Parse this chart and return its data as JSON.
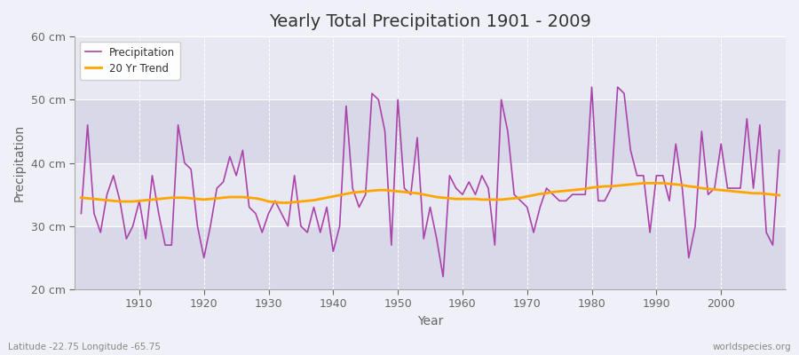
{
  "title": "Yearly Total Precipitation 1901 - 2009",
  "xlabel": "Year",
  "ylabel": "Precipitation",
  "subtitle": "Latitude -22.75 Longitude -65.75",
  "watermark": "worldspecies.org",
  "precip_color": "#AA44AA",
  "trend_color": "#FFA500",
  "bg_color": "#F0F0F8",
  "band_light": "#E8E8F2",
  "band_dark": "#D8D8E8",
  "grid_color": "#FFFFFF",
  "text_color": "#666666",
  "title_color": "#333333",
  "footer_color": "#888888",
  "ylim": [
    20,
    60
  ],
  "yticks": [
    20,
    30,
    40,
    50,
    60
  ],
  "ytick_labels": [
    "20 cm",
    "30 cm",
    "40 cm",
    "50 cm",
    "60 cm"
  ],
  "xlim": [
    1900,
    2010
  ],
  "xticks": [
    1910,
    1920,
    1930,
    1940,
    1950,
    1960,
    1970,
    1980,
    1990,
    2000
  ],
  "years": [
    1901,
    1902,
    1903,
    1904,
    1905,
    1906,
    1907,
    1908,
    1909,
    1910,
    1911,
    1912,
    1913,
    1914,
    1915,
    1916,
    1917,
    1918,
    1919,
    1920,
    1921,
    1922,
    1923,
    1924,
    1925,
    1926,
    1927,
    1928,
    1929,
    1930,
    1931,
    1932,
    1933,
    1934,
    1935,
    1936,
    1937,
    1938,
    1939,
    1940,
    1941,
    1942,
    1943,
    1944,
    1945,
    1946,
    1947,
    1948,
    1949,
    1950,
    1951,
    1952,
    1953,
    1954,
    1955,
    1956,
    1957,
    1958,
    1959,
    1960,
    1961,
    1962,
    1963,
    1964,
    1965,
    1966,
    1967,
    1968,
    1969,
    1970,
    1971,
    1972,
    1973,
    1974,
    1975,
    1976,
    1977,
    1978,
    1979,
    1980,
    1981,
    1982,
    1983,
    1984,
    1985,
    1986,
    1987,
    1988,
    1989,
    1990,
    1991,
    1992,
    1993,
    1994,
    1995,
    1996,
    1997,
    1998,
    1999,
    2000,
    2001,
    2002,
    2003,
    2004,
    2005,
    2006,
    2007,
    2008,
    2009
  ],
  "precipitation": [
    32,
    46,
    32,
    29,
    35,
    38,
    34,
    28,
    30,
    34,
    28,
    38,
    32,
    27,
    27,
    46,
    40,
    39,
    30,
    25,
    30,
    36,
    37,
    41,
    38,
    42,
    33,
    32,
    29,
    32,
    34,
    32,
    30,
    38,
    30,
    29,
    33,
    29,
    33,
    26,
    30,
    49,
    36,
    33,
    35,
    51,
    50,
    45,
    27,
    50,
    36,
    35,
    44,
    28,
    33,
    28,
    22,
    38,
    36,
    35,
    37,
    35,
    38,
    36,
    27,
    50,
    45,
    35,
    34,
    33,
    29,
    33,
    36,
    35,
    34,
    34,
    35,
    35,
    35,
    52,
    34,
    34,
    36,
    52,
    51,
    42,
    38,
    38,
    29,
    38,
    38,
    34,
    43,
    36,
    25,
    30,
    45,
    35,
    36,
    43,
    36,
    36,
    36,
    47,
    36,
    46,
    29,
    27,
    42
  ],
  "trend": [
    34.5,
    34.4,
    34.3,
    34.2,
    34.1,
    34.0,
    33.9,
    33.9,
    33.9,
    34.0,
    34.1,
    34.2,
    34.3,
    34.4,
    34.5,
    34.5,
    34.5,
    34.4,
    34.3,
    34.2,
    34.3,
    34.4,
    34.5,
    34.6,
    34.6,
    34.6,
    34.5,
    34.4,
    34.2,
    33.9,
    33.8,
    33.7,
    33.7,
    33.8,
    33.9,
    34.0,
    34.1,
    34.3,
    34.5,
    34.7,
    34.9,
    35.1,
    35.3,
    35.4,
    35.5,
    35.6,
    35.7,
    35.7,
    35.6,
    35.5,
    35.4,
    35.3,
    35.2,
    35.0,
    34.8,
    34.6,
    34.5,
    34.4,
    34.3,
    34.3,
    34.3,
    34.3,
    34.2,
    34.2,
    34.2,
    34.2,
    34.3,
    34.4,
    34.5,
    34.7,
    34.9,
    35.1,
    35.2,
    35.4,
    35.5,
    35.6,
    35.7,
    35.8,
    35.9,
    36.1,
    36.2,
    36.3,
    36.3,
    36.4,
    36.5,
    36.6,
    36.7,
    36.8,
    36.8,
    36.8,
    36.8,
    36.7,
    36.6,
    36.5,
    36.3,
    36.2,
    36.0,
    35.9,
    35.8,
    35.7,
    35.6,
    35.5,
    35.4,
    35.3,
    35.2,
    35.2,
    35.1,
    35.0,
    34.9
  ]
}
